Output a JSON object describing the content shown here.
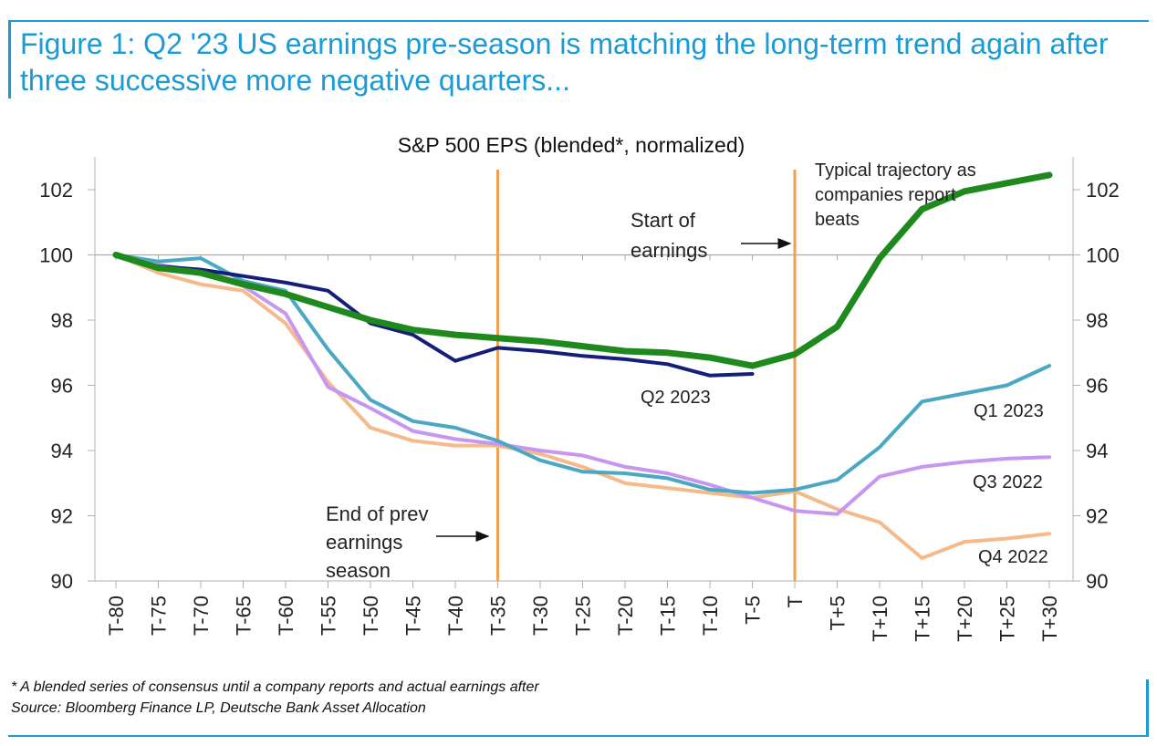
{
  "figure_title": "Figure 1: Q2 '23 US earnings pre-season is matching the long-term trend again after three successive more negative quarters...",
  "footnote": "* A blended series of consensus until a company reports and actual earnings after",
  "source": "Source: Bloomberg Finance LP, Deutsche Bank Asset Allocation",
  "colors": {
    "accent": "#1a9ad6",
    "q2_2023": "#151f7a",
    "typical": "#1e8a1e",
    "q1_2023": "#4aa8c4",
    "q3_2022": "#c796f0",
    "q4_2022": "#f5b98a",
    "marker": "#f0a050"
  },
  "chart_data": {
    "type": "line",
    "title": "S&P 500 EPS (blended*, normalized)",
    "ylim": [
      90,
      103
    ],
    "yticks": [
      90,
      92,
      94,
      96,
      98,
      100,
      102
    ],
    "x": [
      "T-80",
      "T-75",
      "T-70",
      "T-65",
      "T-60",
      "T-55",
      "T-50",
      "T-45",
      "T-40",
      "T-35",
      "T-30",
      "T-25",
      "T-20",
      "T-15",
      "T-10",
      "T-5",
      "T",
      "T+5",
      "T+10",
      "T+15",
      "T+20",
      "T+25",
      "T+30"
    ],
    "series": [
      {
        "name": "Typical trajectory as companies report beats",
        "color_key": "typical",
        "values": [
          100,
          99.6,
          99.45,
          99.1,
          98.8,
          98.4,
          98.0,
          97.7,
          97.55,
          97.45,
          97.35,
          97.2,
          97.05,
          97.0,
          96.85,
          96.6,
          96.95,
          97.8,
          99.9,
          101.4,
          101.95,
          102.2,
          102.45
        ]
      },
      {
        "name": "Q2 2023",
        "color_key": "q2_2023",
        "values": [
          100,
          99.65,
          99.55,
          99.35,
          99.15,
          98.9,
          97.9,
          97.55,
          96.75,
          97.15,
          97.05,
          96.9,
          96.8,
          96.65,
          96.3,
          96.35,
          null,
          null,
          null,
          null,
          null,
          null,
          null
        ]
      },
      {
        "name": "Q1 2023",
        "color_key": "q1_2023",
        "values": [
          100,
          99.8,
          99.9,
          99.2,
          98.9,
          97.1,
          95.55,
          94.9,
          94.7,
          94.3,
          93.7,
          93.35,
          93.3,
          93.15,
          92.8,
          92.7,
          92.8,
          93.1,
          94.1,
          95.5,
          95.75,
          96.0,
          96.6
        ]
      },
      {
        "name": "Q3 2022",
        "color_key": "q3_2022",
        "values": [
          100,
          99.7,
          99.5,
          99.05,
          98.2,
          95.95,
          95.3,
          94.6,
          94.35,
          94.2,
          94.0,
          93.85,
          93.5,
          93.3,
          92.95,
          92.55,
          92.15,
          92.05,
          93.2,
          93.5,
          93.65,
          93.75,
          93.8
        ]
      },
      {
        "name": "Q4 2022",
        "color_key": "q4_2022",
        "values": [
          100,
          99.45,
          99.1,
          98.9,
          97.9,
          96.1,
          94.7,
          94.3,
          94.15,
          94.15,
          93.9,
          93.5,
          93.0,
          92.85,
          92.7,
          92.55,
          92.75,
          92.2,
          91.8,
          90.7,
          91.2,
          91.3,
          91.45
        ]
      }
    ],
    "vlines": [
      "T-35",
      "T"
    ],
    "annotations": {
      "end_of_prev": [
        "End of prev",
        "earnings",
        "season"
      ],
      "start_of": [
        "Start of",
        "earnings"
      ],
      "typical": [
        "Typical trajectory as",
        "companies report",
        "beats"
      ],
      "q2_2023": "Q2 2023",
      "q1_2023": "Q1 2023",
      "q3_2022": "Q3 2022",
      "q4_2022": "Q4 2022"
    }
  }
}
